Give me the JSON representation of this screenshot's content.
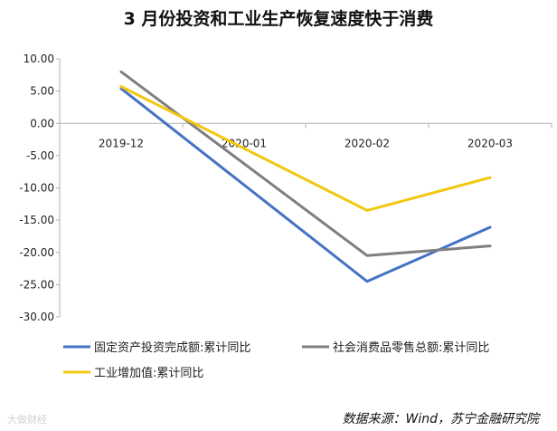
{
  "chart_data": {
    "type": "line",
    "title": "3 月份投资和工业生产恢复速度快于消费",
    "categories": [
      "2019-12",
      "2020-01",
      "2020-02",
      "2020-03"
    ],
    "ylim": [
      -30,
      10
    ],
    "yticks": [
      "10.00",
      "5.00",
      "0.00",
      "-5.00",
      "-10.00",
      "-15.00",
      "-20.00",
      "-25.00",
      "-30.00"
    ],
    "grid": false,
    "legend_position": "bottom",
    "series": [
      {
        "name": "固定资产投资完成额:累计同比",
        "color": "#4472c4",
        "values": [
          5.4,
          null,
          -24.5,
          -16.1
        ]
      },
      {
        "name": "社会消费品零售总额:累计同比",
        "color": "#7f7f7f",
        "values": [
          8.0,
          null,
          -20.5,
          -19.0
        ]
      },
      {
        "name": "工业增加值:累计同比",
        "color": "#f2c80f",
        "values": [
          5.7,
          null,
          -13.5,
          -8.4
        ]
      }
    ]
  },
  "source": "数据来源：Wind，苏宁金融研究院",
  "watermark": "大做财经"
}
